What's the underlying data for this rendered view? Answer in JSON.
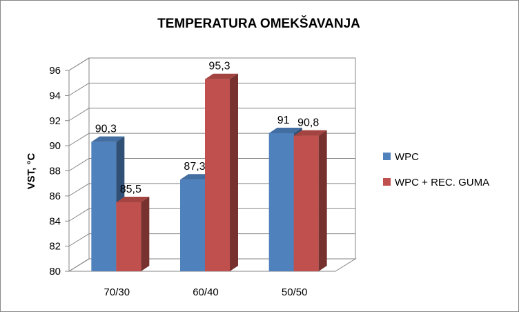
{
  "chart_data": {
    "type": "bar",
    "title": "TEMPERATURA OMEKŠAVANJA",
    "xlabel": "",
    "ylabel": "VST, °C",
    "ylim": [
      80,
      96
    ],
    "yticks": [
      80,
      82,
      84,
      86,
      88,
      90,
      92,
      94,
      96
    ],
    "categories": [
      "70/30",
      "60/40",
      "50/50"
    ],
    "series": [
      {
        "name": "WPC",
        "values": [
          90.3,
          87.3,
          91
        ],
        "labels": [
          "90,3",
          "87,3",
          "91"
        ],
        "color": "#4F81BD"
      },
      {
        "name": "WPC + REC. GUMA",
        "values": [
          85.5,
          95.3,
          90.8
        ],
        "labels": [
          "85,5",
          "95,3",
          "90,8"
        ],
        "color": "#C0504D"
      }
    ],
    "grid": true,
    "legend": "right",
    "style": "3d-clustered-column"
  }
}
